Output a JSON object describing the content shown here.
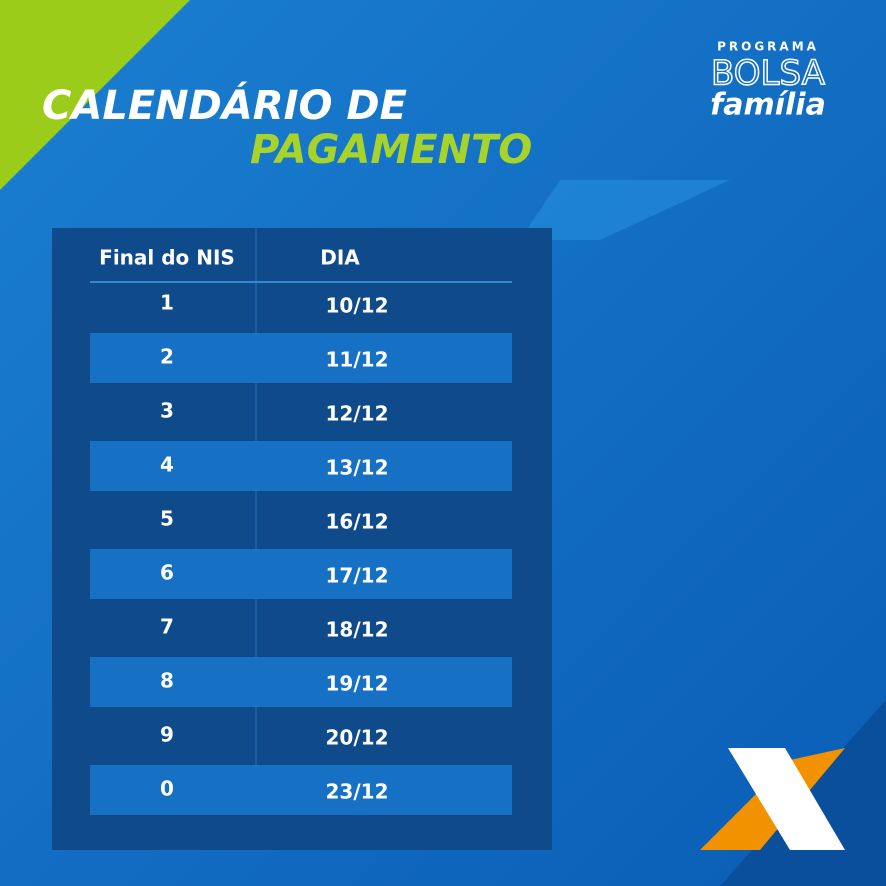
{
  "header": {
    "title": [
      "CALENDÁRIO DE",
      "PAGAMENTO"
    ]
  },
  "logo": {
    "program": "PROGRAMA",
    "name": "BOLSA",
    "subname": "família"
  },
  "table": {
    "columns": [
      "Final do NIS",
      "DIA"
    ],
    "rows": [
      [
        "1",
        "10/12"
      ],
      [
        "2",
        "11/12"
      ],
      [
        "3",
        "12/12"
      ],
      [
        "4",
        "13/12"
      ],
      [
        "5",
        "16/12"
      ],
      [
        "6",
        "17/12"
      ],
      [
        "7",
        "18/12"
      ],
      [
        "8",
        "19/12"
      ],
      [
        "9",
        "20/12"
      ],
      [
        "0",
        "23/12"
      ]
    ]
  }
}
